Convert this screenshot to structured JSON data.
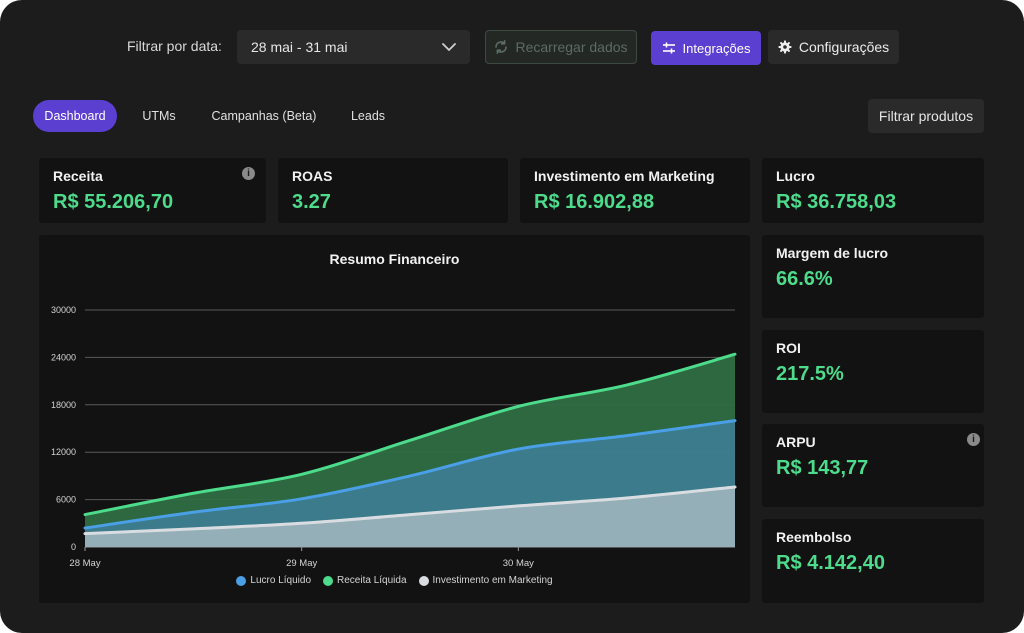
{
  "filters": {
    "date_label": "Filtrar por data:",
    "date_value": "28 mai - 31 mai",
    "reload_label": "Recarregar dados",
    "integrations_label": "Integrações",
    "settings_label": "Configurações"
  },
  "tabs": [
    {
      "label": "Dashboard",
      "active": true
    },
    {
      "label": "UTMs",
      "active": false
    },
    {
      "label": "Campanhas (Beta)",
      "active": false
    },
    {
      "label": "Leads",
      "active": false
    }
  ],
  "filter_products_label": "Filtrar produtos",
  "metrics": {
    "receita": {
      "title": "Receita",
      "value": "R$ 55.206,70"
    },
    "roas": {
      "title": "ROAS",
      "value": "3.27"
    },
    "investimento": {
      "title": "Investimento em Marketing",
      "value": "R$ 16.902,88"
    },
    "lucro": {
      "title": "Lucro",
      "value": "R$ 36.758,03"
    },
    "margem": {
      "title": "Margem de lucro",
      "value": "66.6%"
    },
    "roi": {
      "title": "ROI",
      "value": "217.5%"
    },
    "arpu": {
      "title": "ARPU",
      "value": "R$ 143,77"
    },
    "reembolso": {
      "title": "Reembolso",
      "value": "R$ 4.142,40"
    }
  },
  "colors": {
    "accent": "#5b3fd1",
    "positive": "#4ddb8c",
    "series_lucro": "#4a9fe6",
    "series_receita": "#4ddb8c",
    "series_invest": "#d9dde2"
  },
  "chart_data": {
    "type": "area",
    "title": "Resumo Financeiro",
    "x": [
      0,
      0.5,
      1,
      1.5,
      2,
      2.5,
      3
    ],
    "x_ticks": [
      {
        "x": 0,
        "label": "28 May"
      },
      {
        "x": 1,
        "label": "29 May"
      },
      {
        "x": 2,
        "label": "30 May"
      }
    ],
    "y_ticks": [
      0,
      6000,
      12000,
      18000,
      24000,
      30000
    ],
    "ylim": [
      0,
      30000
    ],
    "grid": true,
    "legend_position": "bottom",
    "series": [
      {
        "name": "Receita Líquida",
        "color": "#4ddb8c",
        "values": [
          4100,
          6800,
          9200,
          13500,
          17800,
          20500,
          24400
        ]
      },
      {
        "name": "Lucro Líquido",
        "color": "#4a9fe6",
        "values": [
          2400,
          4400,
          6100,
          9000,
          12400,
          14100,
          16000
        ]
      },
      {
        "name": "Investimento em Marketing",
        "color": "#d9dde2",
        "values": [
          1700,
          2300,
          3000,
          4100,
          5200,
          6200,
          7600
        ]
      }
    ],
    "legend": [
      {
        "name": "Lucro Líquido",
        "color": "#4a9fe6"
      },
      {
        "name": "Receita Líquida",
        "color": "#4ddb8c"
      },
      {
        "name": "Investimento em Marketing",
        "color": "#d9dde2"
      }
    ]
  }
}
